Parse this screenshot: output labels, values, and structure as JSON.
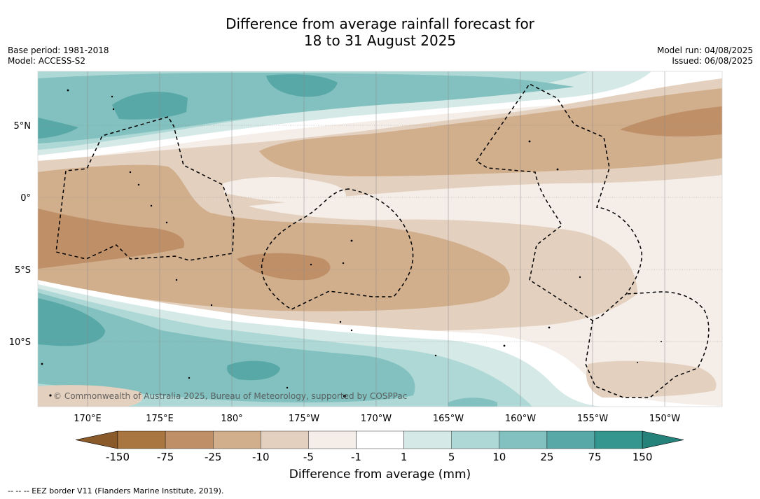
{
  "title": {
    "line1": "Difference from average rainfall forecast for",
    "line2": "18 to 31 August 2025"
  },
  "meta_left": {
    "base_period": "Base period: 1981-2018",
    "model": "Model: ACCESS-S2"
  },
  "meta_right": {
    "model_run": "Model run: 04/08/2025",
    "issued": "Issued: 06/08/2025"
  },
  "map": {
    "lon_labels": [
      "170°E",
      "175°E",
      "180°",
      "175°W",
      "170°W",
      "165°W",
      "160°W",
      "155°W",
      "150°W"
    ],
    "lat_labels": [
      "5°N",
      "0°",
      "5°S",
      "10°S"
    ],
    "copyright": "© Commonwealth of Australia 2025, Bureau of Meteorology, supported by COSPPac",
    "border_line_type": "dashed"
  },
  "colorbar": {
    "title": "Difference from average (mm)",
    "labels": [
      "-150",
      "-75",
      "-25",
      "-10",
      "-5",
      "-1",
      "1",
      "5",
      "10",
      "25",
      "75",
      "150"
    ],
    "colors": [
      "#8b5a2b",
      "#a97541",
      "#bf9068",
      "#d1ae8c",
      "#e4d0be",
      "#f4ede8",
      "#ffffff",
      "#d5e9e7",
      "#aed8d6",
      "#82c1bf",
      "#57a8a7",
      "#35968f",
      "#24827b"
    ]
  },
  "footer": "--  --  -- EEZ border V11 (Flanders Marine Institute, 2019)."
}
